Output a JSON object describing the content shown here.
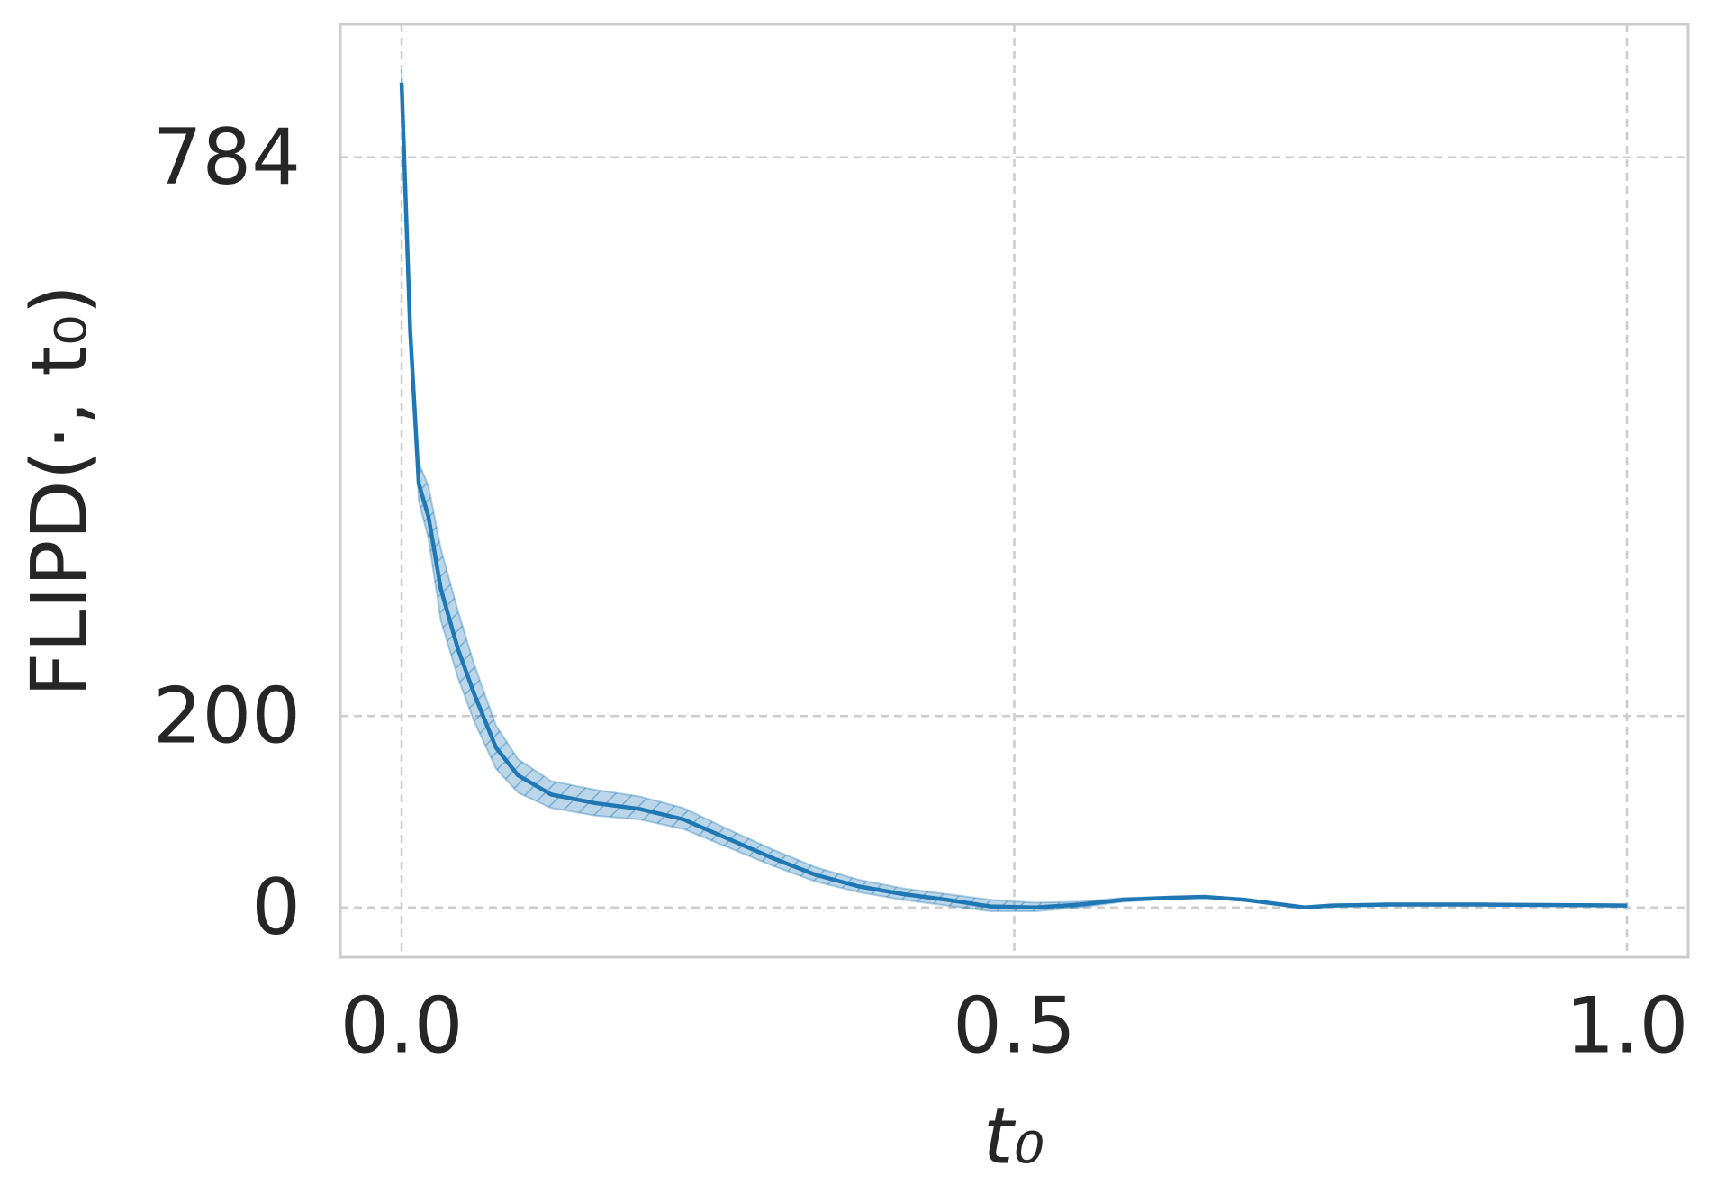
{
  "chart_data": {
    "type": "line",
    "xlabel": "t₀",
    "ylabel": "FLIPD(·, t₀)",
    "x": [
      0,
      0.007,
      0.014,
      0.022,
      0.032,
      0.046,
      0.059,
      0.077,
      0.095,
      0.122,
      0.158,
      0.194,
      0.23,
      0.266,
      0.302,
      0.338,
      0.373,
      0.409,
      0.445,
      0.481,
      0.517,
      0.553,
      0.589,
      0.625,
      0.656,
      0.688,
      0.719,
      0.737,
      0.759,
      0.804,
      0.885,
      1.0
    ],
    "values": [
      862,
      603,
      443,
      408,
      333,
      270,
      224,
      167,
      138,
      118,
      109,
      103,
      92,
      72,
      52,
      34,
      22,
      14,
      8,
      1,
      0,
      3,
      8,
      10,
      11,
      8,
      3,
      0,
      2,
      3,
      3,
      2
    ],
    "upper": [
      875,
      620,
      465,
      440,
      375,
      310,
      255,
      190,
      155,
      132,
      123,
      116,
      104,
      82,
      61,
      42,
      29,
      20,
      14,
      8,
      5,
      6,
      10,
      11,
      12,
      9,
      4,
      1,
      3,
      4,
      4,
      3
    ],
    "lower": [
      850,
      590,
      425,
      385,
      300,
      240,
      195,
      145,
      120,
      104,
      96,
      92,
      82,
      63,
      44,
      27,
      16,
      8,
      2,
      -4,
      -4,
      0,
      6,
      9,
      10,
      7,
      2,
      -1,
      1,
      2,
      2,
      1
    ],
    "color": "#1f77b4",
    "xlim": [
      -0.05,
      1.05
    ],
    "ylim": [
      -52,
      923
    ],
    "xticks": [
      {
        "value": 0,
        "label": "0.0"
      },
      0.5,
      {
        "value": 1,
        "label": "1.0"
      }
    ],
    "yticks": [
      0,
      200,
      784
    ],
    "grid": true
  }
}
